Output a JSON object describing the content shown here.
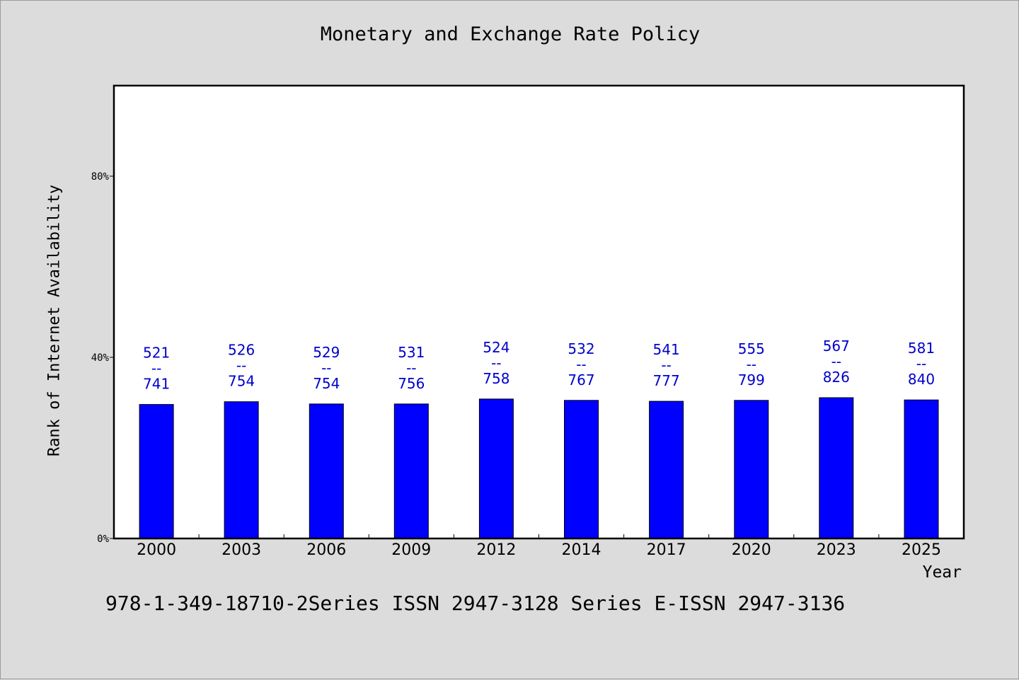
{
  "chart_data": {
    "type": "bar",
    "title": "Monetary and Exchange Rate Policy",
    "xlabel": "Year",
    "ylabel": "Rank of Internet Availability",
    "ylim": [
      0,
      100
    ],
    "yticks": [
      0,
      40,
      80
    ],
    "ytick_labels": [
      "0%",
      "40%",
      "80%"
    ],
    "grid": false,
    "categories": [
      "2000",
      "2003",
      "2006",
      "2009",
      "2012",
      "2014",
      "2017",
      "2020",
      "2023",
      "2025"
    ],
    "values": [
      29.6,
      30.2,
      29.7,
      29.7,
      30.8,
      30.5,
      30.3,
      30.5,
      31.1,
      30.6
    ],
    "bar_color": "#0000ff",
    "label_color": "#0000cc",
    "data_labels": [
      {
        "top": "521",
        "sep": "--",
        "bottom": "741"
      },
      {
        "top": "526",
        "sep": "--",
        "bottom": "754"
      },
      {
        "top": "529",
        "sep": "--",
        "bottom": "754"
      },
      {
        "top": "531",
        "sep": "--",
        "bottom": "756"
      },
      {
        "top": "524",
        "sep": "--",
        "bottom": "758"
      },
      {
        "top": "532",
        "sep": "--",
        "bottom": "767"
      },
      {
        "top": "541",
        "sep": "--",
        "bottom": "777"
      },
      {
        "top": "555",
        "sep": "--",
        "bottom": "799"
      },
      {
        "top": "567",
        "sep": "--",
        "bottom": "826"
      },
      {
        "top": "581",
        "sep": "--",
        "bottom": "840"
      }
    ]
  },
  "footer": {
    "text": "978-1-349-18710-2Series ISSN 2947-3128 Series E-ISSN 2947-3136"
  }
}
